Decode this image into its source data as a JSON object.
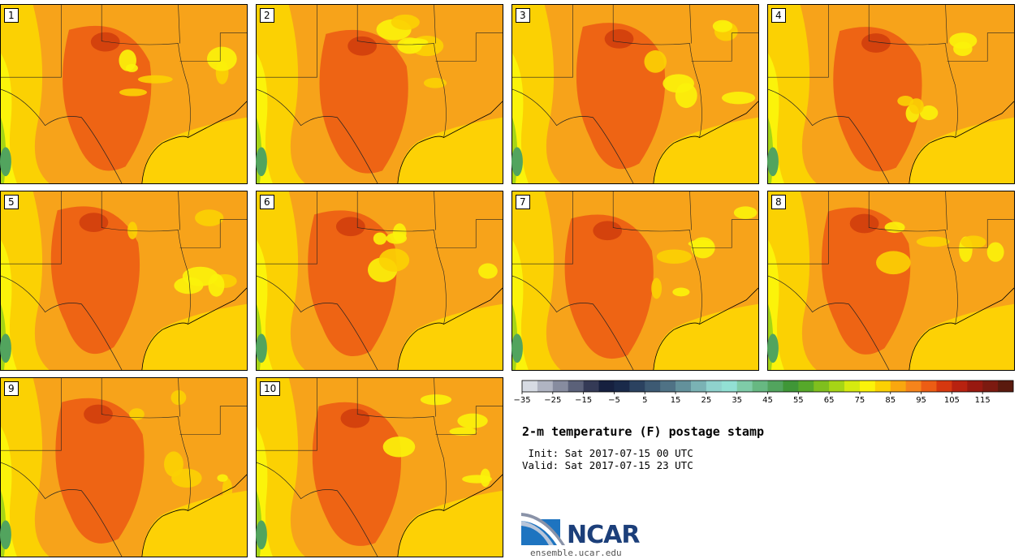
{
  "panels": [
    {
      "label": "1"
    },
    {
      "label": "2"
    },
    {
      "label": "3"
    },
    {
      "label": "4"
    },
    {
      "label": "5"
    },
    {
      "label": "6"
    },
    {
      "label": "7"
    },
    {
      "label": "8"
    },
    {
      "label": "9"
    },
    {
      "label": "10"
    }
  ],
  "colorbar": {
    "tick_labels": [
      "−35",
      "−25",
      "−15",
      "−5",
      "5",
      "15",
      "25",
      "35",
      "45",
      "55",
      "65",
      "75",
      "85",
      "95",
      "105",
      "115"
    ],
    "colors": [
      "#d7dbe3",
      "#b0b4c2",
      "#878c9f",
      "#5b6179",
      "#343a56",
      "#16203f",
      "#1a2a4a",
      "#2b4260",
      "#3d5a73",
      "#4f7285",
      "#63919b",
      "#7ab2b4",
      "#8fd2cd",
      "#92e0d4",
      "#7fcca8",
      "#67b882",
      "#52a45e",
      "#3f9637",
      "#56a82a",
      "#7fbf1e",
      "#a6d516",
      "#d6ea0f",
      "#fbf30a",
      "#fbd103",
      "#f9a70f",
      "#f6841b",
      "#ec5d14",
      "#d6380f",
      "#b82210",
      "#981910",
      "#7c1a10",
      "#5a1a0e"
    ]
  },
  "title": "2-m temperature (F) postage stamp",
  "init_line": " Init: Sat 2017-07-15 00 UTC",
  "valid_line": "Valid: Sat 2017-07-15 23 UTC",
  "logo": {
    "name": "NCAR",
    "url": "ensemble.ucar.edu"
  },
  "map_colors": {
    "base": "#f7a31a",
    "hot": "#ec5d14",
    "hotter": "#d4420d",
    "warm": "#fbd103",
    "mild": "#fbf30a",
    "cool": "#a6d516",
    "green": "#52a45e",
    "gulf": "#fdd105",
    "border": "#222222"
  }
}
